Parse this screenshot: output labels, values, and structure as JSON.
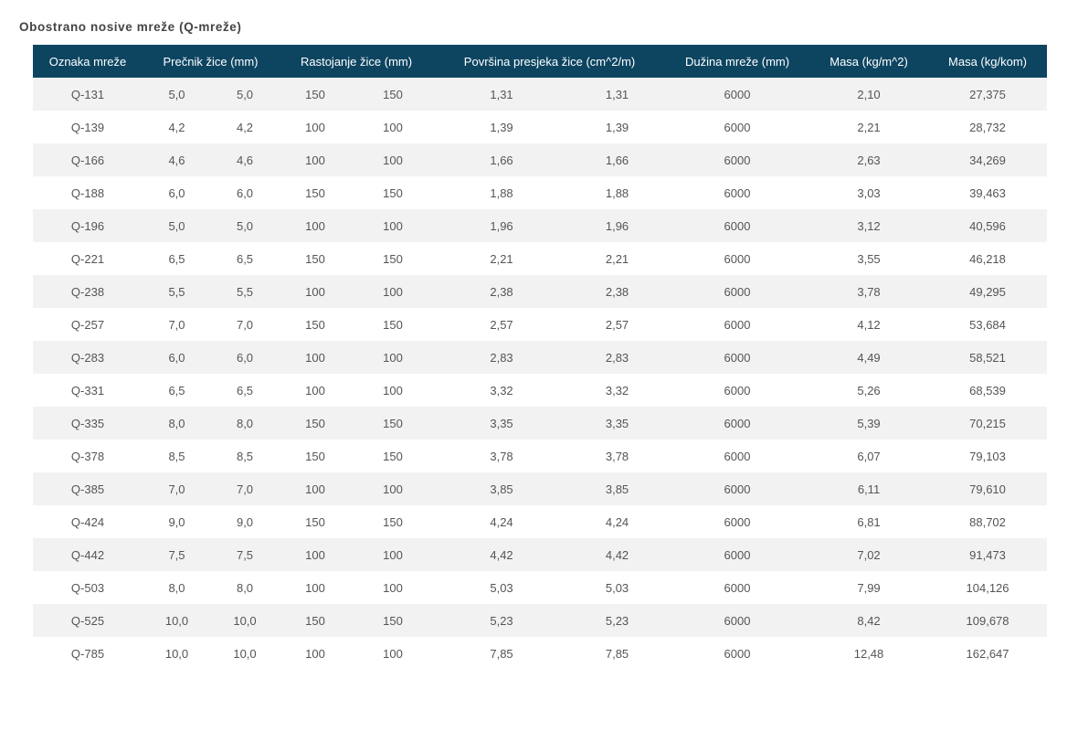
{
  "title": "Obostrano nosive mreže (Q-mreže)",
  "headers": [
    "Oznaka mreže",
    "Prečnik žice (mm)",
    "Rastojanje žice (mm)",
    "Površina presjeka žice (cm^2/m)",
    "Dužina mreže (mm)",
    "Masa (kg/m^2)",
    "Masa (kg/kom)"
  ],
  "rows": [
    [
      "Q-131",
      "5,0",
      "5,0",
      "150",
      "150",
      "1,31",
      "1,31",
      "6000",
      "2,10",
      "27,375"
    ],
    [
      "Q-139",
      "4,2",
      "4,2",
      "100",
      "100",
      "1,39",
      "1,39",
      "6000",
      "2,21",
      "28,732"
    ],
    [
      "Q-166",
      "4,6",
      "4,6",
      "100",
      "100",
      "1,66",
      "1,66",
      "6000",
      "2,63",
      "34,269"
    ],
    [
      "Q-188",
      "6,0",
      "6,0",
      "150",
      "150",
      "1,88",
      "1,88",
      "6000",
      "3,03",
      "39,463"
    ],
    [
      "Q-196",
      "5,0",
      "5,0",
      "100",
      "100",
      "1,96",
      "1,96",
      "6000",
      "3,12",
      "40,596"
    ],
    [
      "Q-221",
      "6,5",
      "6,5",
      "150",
      "150",
      "2,21",
      "2,21",
      "6000",
      "3,55",
      "46,218"
    ],
    [
      "Q-238",
      "5,5",
      "5,5",
      "100",
      "100",
      "2,38",
      "2,38",
      "6000",
      "3,78",
      "49,295"
    ],
    [
      "Q-257",
      "7,0",
      "7,0",
      "150",
      "150",
      "2,57",
      "2,57",
      "6000",
      "4,12",
      "53,684"
    ],
    [
      "Q-283",
      "6,0",
      "6,0",
      "100",
      "100",
      "2,83",
      "2,83",
      "6000",
      "4,49",
      "58,521"
    ],
    [
      "Q-331",
      "6,5",
      "6,5",
      "100",
      "100",
      "3,32",
      "3,32",
      "6000",
      "5,26",
      "68,539"
    ],
    [
      "Q-335",
      "8,0",
      "8,0",
      "150",
      "150",
      "3,35",
      "3,35",
      "6000",
      "5,39",
      "70,215"
    ],
    [
      "Q-378",
      "8,5",
      "8,5",
      "150",
      "150",
      "3,78",
      "3,78",
      "6000",
      "6,07",
      "79,103"
    ],
    [
      "Q-385",
      "7,0",
      "7,0",
      "100",
      "100",
      "3,85",
      "3,85",
      "6000",
      "6,11",
      "79,610"
    ],
    [
      "Q-424",
      "9,0",
      "9,0",
      "150",
      "150",
      "4,24",
      "4,24",
      "6000",
      "6,81",
      "88,702"
    ],
    [
      "Q-442",
      "7,5",
      "7,5",
      "100",
      "100",
      "4,42",
      "4,42",
      "6000",
      "7,02",
      "91,473"
    ],
    [
      "Q-503",
      "8,0",
      "8,0",
      "100",
      "100",
      "5,03",
      "5,03",
      "6000",
      "7,99",
      "104,126"
    ],
    [
      "Q-525",
      "10,0",
      "10,0",
      "150",
      "150",
      "5,23",
      "5,23",
      "6000",
      "8,42",
      "109,678"
    ],
    [
      "Q-785",
      "10,0",
      "10,0",
      "100",
      "100",
      "7,85",
      "7,85",
      "6000",
      "12,48",
      "162,647"
    ]
  ],
  "colors": {
    "header_background": "#0d4561",
    "header_text": "#ffffff",
    "row_stripe": "#f2f2f2",
    "cell_text": "#555555",
    "title_text": "#444444"
  }
}
